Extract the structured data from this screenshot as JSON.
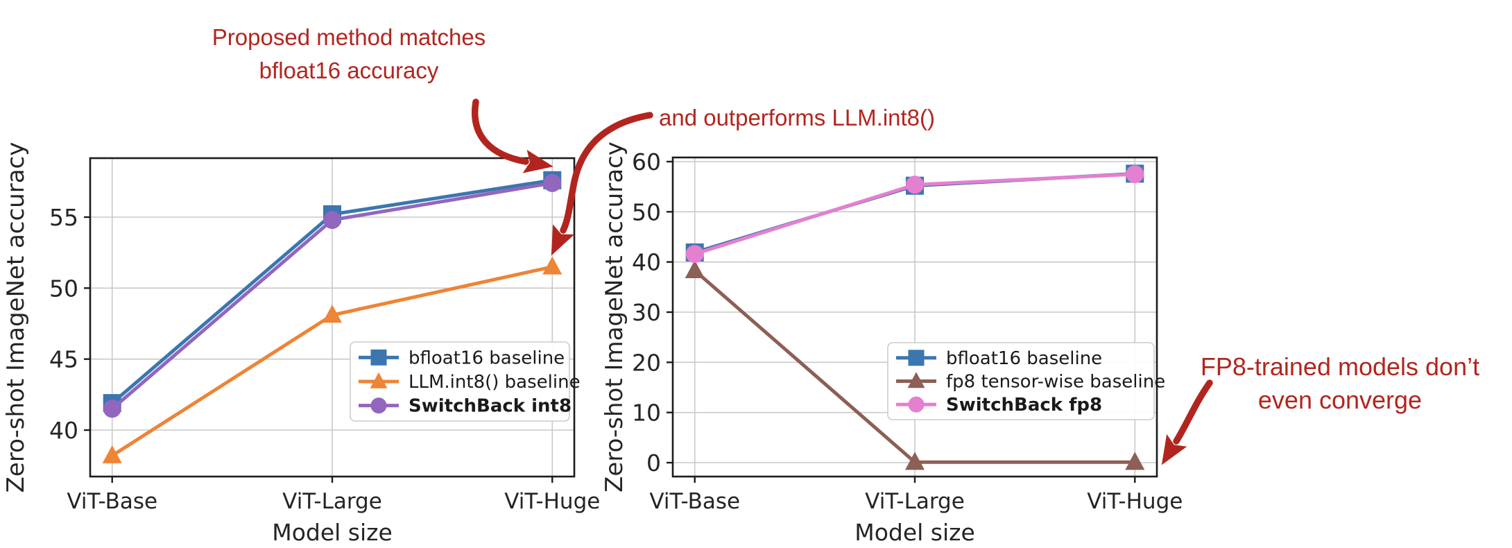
{
  "figure": {
    "accent_red": "#b2251e",
    "background": "#ffffff",
    "axis_color": "#1c1c1c",
    "grid_color": "#c9c9c9",
    "text_color": "#242424",
    "annotations": [
      {
        "id": "proposed-method",
        "lines": [
          "Proposed method matches",
          "bfloat16 accuracy"
        ]
      },
      {
        "id": "outperforms-int8",
        "lines": [
          "and outperforms LLM.int8()"
        ]
      },
      {
        "id": "fp8-no-converge",
        "lines": [
          "FP8-trained models don’t",
          "even converge"
        ]
      }
    ]
  },
  "chart_data": [
    {
      "id": "int8-chart",
      "type": "line",
      "title": "",
      "xlabel": "Model size",
      "ylabel": "Zero-shot ImageNet accuracy",
      "categories": [
        "ViT-Base",
        "ViT-Large",
        "ViT-Huge"
      ],
      "yticks": [
        40,
        45,
        50,
        55
      ],
      "ylim": [
        36.7,
        59.2
      ],
      "grid": true,
      "legend_position": "lower right",
      "series": [
        {
          "name": "bfloat16 baseline",
          "color": "#3b76af",
          "marker": "square",
          "bold": false,
          "values": [
            41.9,
            55.2,
            57.6
          ]
        },
        {
          "name": "LLM.int8() baseline",
          "color": "#ee8435",
          "marker": "triangle",
          "bold": false,
          "values": [
            38.2,
            48.1,
            51.5
          ]
        },
        {
          "name": "SwitchBack int8",
          "color": "#9266be",
          "marker": "circle",
          "bold": true,
          "values": [
            41.5,
            54.8,
            57.4
          ]
        }
      ]
    },
    {
      "id": "fp8-chart",
      "type": "line",
      "title": "",
      "xlabel": "Model size",
      "ylabel": "Zero-shot ImageNet accuracy",
      "categories": [
        "ViT-Base",
        "ViT-Large",
        "ViT-Huge"
      ],
      "yticks": [
        0,
        10,
        20,
        30,
        40,
        50,
        60
      ],
      "ylim": [
        -2.8,
        61
      ],
      "grid": true,
      "legend_position": "center right",
      "series": [
        {
          "name": "bfloat16 baseline",
          "color": "#3b76af",
          "marker": "square",
          "bold": false,
          "values": [
            41.9,
            55.2,
            57.6
          ]
        },
        {
          "name": "fp8 tensor-wise baseline",
          "color": "#8d5f55",
          "marker": "triangle",
          "bold": false,
          "values": [
            38.3,
            0.1,
            0.1
          ]
        },
        {
          "name": "SwitchBack fp8",
          "color": "#e57fd0",
          "marker": "circle",
          "bold": true,
          "values": [
            41.6,
            55.4,
            57.5
          ]
        }
      ]
    }
  ]
}
